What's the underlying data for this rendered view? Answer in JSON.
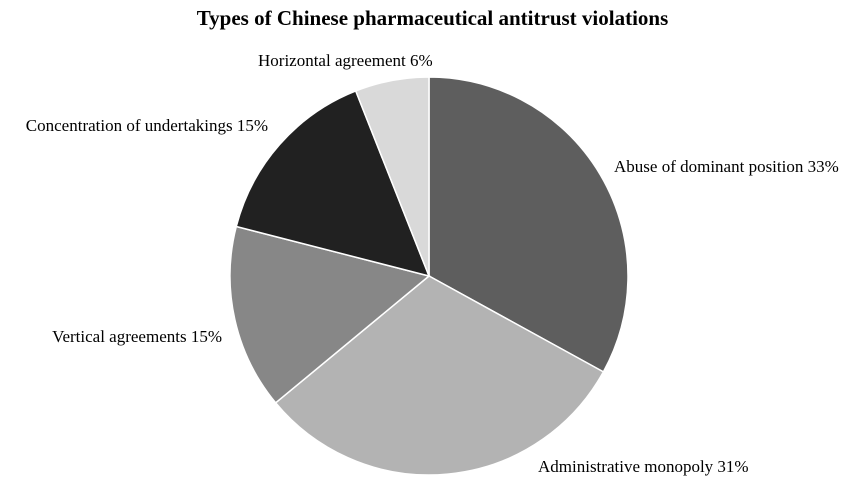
{
  "chart_data": {
    "type": "pie",
    "title": "Types of Chinese pharmaceutical antitrust violations",
    "slices": [
      {
        "label": "Abuse of dominant position 33%",
        "value": 33,
        "color": "#5e5e5e"
      },
      {
        "label": "Administrative monopoly 31%",
        "value": 31,
        "color": "#b3b3b3"
      },
      {
        "label": "Vertical agreements 15%",
        "value": 15,
        "color": "#878787"
      },
      {
        "label": "Concentration of undertakings 15%",
        "value": 15,
        "color": "#212121"
      },
      {
        "label": "Horizontal agreement 6%",
        "value": 6,
        "color": "#d9d9d9"
      }
    ],
    "slice_border_color": "#ffffff",
    "start": "top",
    "direction": "clockwise"
  }
}
